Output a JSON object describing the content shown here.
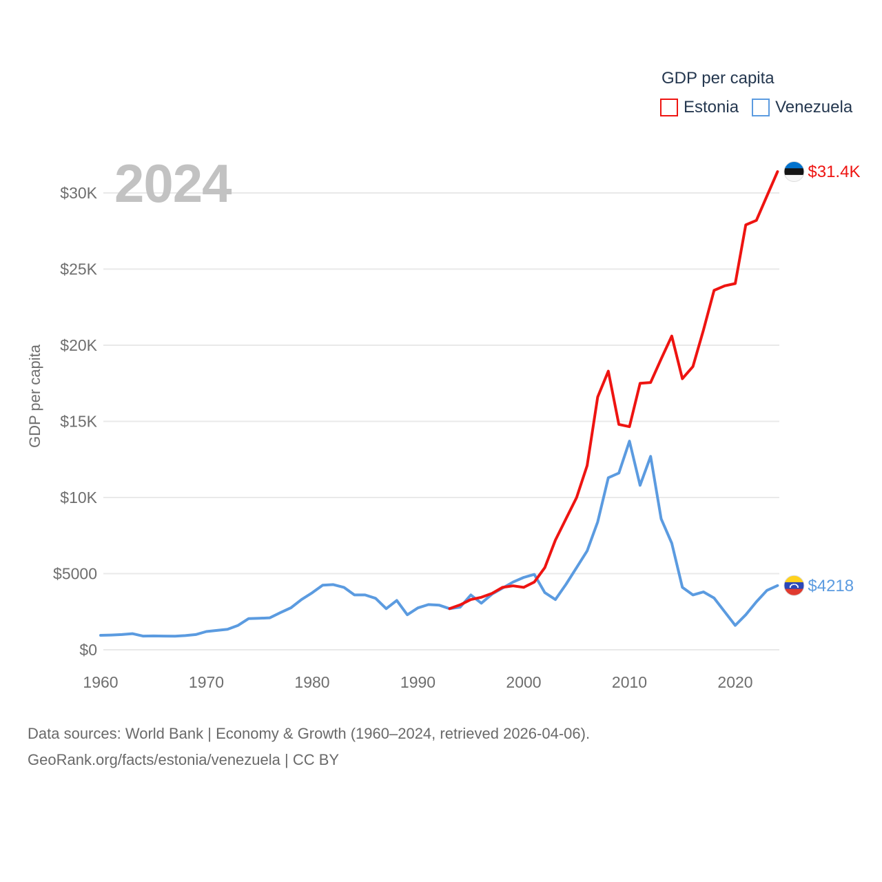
{
  "legend": {
    "title": "GDP per capita",
    "items": [
      {
        "label": "Estonia",
        "color": "#ee1411"
      },
      {
        "label": "Venezuela",
        "color": "#5b9be0"
      }
    ]
  },
  "watermark": "2024",
  "y_axis_title": "GDP per capita",
  "footer": {
    "line1": "Data sources: World Bank | Economy & Growth (1960–2024, retrieved 2026-04-06).",
    "line2": "GeoRank.org/facts/estonia/venezuela | CC BY"
  },
  "colors": {
    "estonia": "#ee1411",
    "venezuela": "#5b9be0",
    "gridline": "#e9e9e9",
    "tick_text": "#6e6e6e",
    "legend_text": "#24374f",
    "watermark": "#c2c2c2",
    "footer_text": "#696969"
  },
  "chart_data": {
    "type": "line",
    "title": "GDP per capita",
    "xlabel": "",
    "ylabel": "GDP per capita",
    "x_range": [
      1960,
      2024
    ],
    "x_ticks": [
      1960,
      1970,
      1980,
      1990,
      2000,
      2010,
      2020
    ],
    "y_ticks": [
      {
        "value": 0,
        "label": "$0"
      },
      {
        "value": 5000,
        "label": "$5000"
      },
      {
        "value": 10000,
        "label": "$10K"
      },
      {
        "value": 15000,
        "label": "$15K"
      },
      {
        "value": 20000,
        "label": "$20K"
      },
      {
        "value": 25000,
        "label": "$25K"
      },
      {
        "value": 30000,
        "label": "$30K"
      }
    ],
    "ylim": [
      0,
      32500
    ],
    "grid": true,
    "legend_position": "top-right",
    "series": [
      {
        "name": "Estonia",
        "color": "#ee1411",
        "flag": "estonia",
        "end_label": "$31.4K",
        "x_start": 1993,
        "values": [
          2700,
          2950,
          3300,
          3450,
          3700,
          4100,
          4200,
          4100,
          4450,
          5400,
          7200,
          8600,
          10000,
          12100,
          16600,
          18300,
          14800,
          14650,
          17500,
          17550,
          19100,
          20600,
          17800,
          18600,
          21000,
          23600,
          23900,
          24050,
          27900,
          28200,
          29800,
          31400
        ]
      },
      {
        "name": "Venezuela",
        "color": "#5b9be0",
        "flag": "venezuela",
        "end_label": "$4218",
        "x_start": 1960,
        "values": [
          950,
          970,
          1000,
          1060,
          900,
          910,
          900,
          890,
          930,
          1000,
          1200,
          1270,
          1350,
          1600,
          2050,
          2070,
          2100,
          2440,
          2760,
          3300,
          3740,
          4240,
          4280,
          4100,
          3600,
          3600,
          3380,
          2700,
          3240,
          2300,
          2750,
          2970,
          2930,
          2700,
          2800,
          3600,
          3060,
          3650,
          4050,
          4450,
          4750,
          4950,
          3750,
          3300,
          4300,
          5400,
          6500,
          8400,
          11300,
          11600,
          13700,
          10800,
          12700,
          8600,
          7000,
          4100,
          3600,
          3800,
          3400,
          2500,
          1600,
          2300,
          3150,
          3900,
          4218
        ]
      }
    ]
  }
}
